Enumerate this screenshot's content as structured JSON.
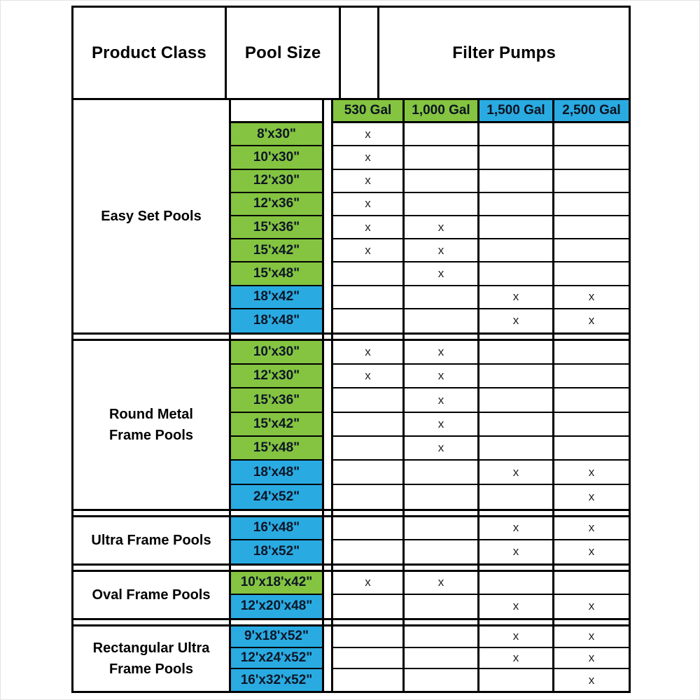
{
  "table": {
    "header": {
      "product_class": "Product Class",
      "pool_size": "Pool Size",
      "filter_pumps": "Filter Pumps"
    },
    "pump_columns": [
      {
        "label": "530 Gal",
        "color": "green"
      },
      {
        "label": "1,000 Gal",
        "color": "green"
      },
      {
        "label": "1,500 Gal",
        "color": "blue"
      },
      {
        "label": "2,500 Gal",
        "color": "blue"
      }
    ],
    "mark": "x",
    "colors": {
      "green": "#84c441",
      "blue": "#29abe2"
    },
    "sections": [
      {
        "product_class": "Easy Set Pools",
        "lines": [
          "Easy Set Pools"
        ],
        "pump_header": true,
        "rows": [
          {
            "size": "8'x30\"",
            "color": "green",
            "pumps": [
              1,
              0,
              0,
              0
            ]
          },
          {
            "size": "10'x30\"",
            "color": "green",
            "pumps": [
              1,
              0,
              0,
              0
            ]
          },
          {
            "size": "12'x30\"",
            "color": "green",
            "pumps": [
              1,
              0,
              0,
              0
            ]
          },
          {
            "size": "12'x36\"",
            "color": "green",
            "pumps": [
              1,
              0,
              0,
              0
            ]
          },
          {
            "size": "15'x36\"",
            "color": "green",
            "pumps": [
              1,
              1,
              0,
              0
            ]
          },
          {
            "size": "15'x42\"",
            "color": "green",
            "pumps": [
              1,
              1,
              0,
              0
            ]
          },
          {
            "size": "15'x48\"",
            "color": "green",
            "pumps": [
              0,
              1,
              0,
              0
            ]
          },
          {
            "size": "18'x42\"",
            "color": "blue",
            "pumps": [
              0,
              0,
              1,
              1
            ]
          },
          {
            "size": "18'x48\"",
            "color": "blue",
            "pumps": [
              0,
              0,
              1,
              1
            ]
          }
        ]
      },
      {
        "product_class": "Round Metal Frame Pools",
        "lines": [
          "Round Metal",
          "Frame Pools"
        ],
        "pump_header": false,
        "rows": [
          {
            "size": "10'x30\"",
            "color": "green",
            "pumps": [
              1,
              1,
              0,
              0
            ]
          },
          {
            "size": "12'x30\"",
            "color": "green",
            "pumps": [
              1,
              1,
              0,
              0
            ]
          },
          {
            "size": "15'x36\"",
            "color": "green",
            "pumps": [
              0,
              1,
              0,
              0
            ]
          },
          {
            "size": "15'x42\"",
            "color": "green",
            "pumps": [
              0,
              1,
              0,
              0
            ]
          },
          {
            "size": "15'x48\"",
            "color": "green",
            "pumps": [
              0,
              1,
              0,
              0
            ]
          },
          {
            "size": "18'x48\"",
            "color": "blue",
            "pumps": [
              0,
              0,
              1,
              1
            ]
          },
          {
            "size": "24'x52\"",
            "color": "blue",
            "pumps": [
              0,
              0,
              0,
              1
            ]
          }
        ]
      },
      {
        "product_class": "Ultra Frame Pools",
        "lines": [
          "Ultra Frame Pools"
        ],
        "pump_header": false,
        "rows": [
          {
            "size": "16'x48\"",
            "color": "blue",
            "pumps": [
              0,
              0,
              1,
              1
            ]
          },
          {
            "size": "18'x52\"",
            "color": "blue",
            "pumps": [
              0,
              0,
              1,
              1
            ]
          }
        ]
      },
      {
        "product_class": "Oval Frame Pools",
        "lines": [
          "Oval Frame Pools"
        ],
        "pump_header": false,
        "rows": [
          {
            "size": "10'x18'x42\"",
            "color": "green",
            "pumps": [
              1,
              1,
              0,
              0
            ]
          },
          {
            "size": "12'x20'x48\"",
            "color": "blue",
            "pumps": [
              0,
              0,
              1,
              1
            ]
          }
        ]
      },
      {
        "product_class": "Rectangular Ultra Frame Pools",
        "lines": [
          "Rectangular Ultra",
          "Frame Pools"
        ],
        "pump_header": false,
        "rows": [
          {
            "size": "9'x18'x52\"",
            "color": "blue",
            "pumps": [
              0,
              0,
              1,
              1
            ]
          },
          {
            "size": "12'x24'x52\"",
            "color": "blue",
            "pumps": [
              0,
              0,
              1,
              1
            ]
          },
          {
            "size": "16'x32'x52\"",
            "color": "blue",
            "pumps": [
              0,
              0,
              0,
              1
            ]
          }
        ]
      }
    ]
  },
  "chart_data": {
    "type": "table",
    "title": "Filter Pumps",
    "columns": [
      "Product Class",
      "Pool Size",
      "530 Gal",
      "1,000 Gal",
      "1,500 Gal",
      "2,500 Gal"
    ],
    "rows": [
      [
        "Easy Set Pools",
        "8'x30\"",
        "x",
        "",
        "",
        ""
      ],
      [
        "Easy Set Pools",
        "10'x30\"",
        "x",
        "",
        "",
        ""
      ],
      [
        "Easy Set Pools",
        "12'x30\"",
        "x",
        "",
        "",
        ""
      ],
      [
        "Easy Set Pools",
        "12'x36\"",
        "x",
        "",
        "",
        ""
      ],
      [
        "Easy Set Pools",
        "15'x36\"",
        "x",
        "x",
        "",
        ""
      ],
      [
        "Easy Set Pools",
        "15'x42\"",
        "x",
        "x",
        "",
        ""
      ],
      [
        "Easy Set Pools",
        "15'x48\"",
        "",
        "x",
        "",
        ""
      ],
      [
        "Easy Set Pools",
        "18'x42\"",
        "",
        "",
        "x",
        "x"
      ],
      [
        "Easy Set Pools",
        "18'x48\"",
        "",
        "",
        "x",
        "x"
      ],
      [
        "Round Metal Frame Pools",
        "10'x30\"",
        "x",
        "x",
        "",
        ""
      ],
      [
        "Round Metal Frame Pools",
        "12'x30\"",
        "x",
        "x",
        "",
        ""
      ],
      [
        "Round Metal Frame Pools",
        "15'x36\"",
        "",
        "x",
        "",
        ""
      ],
      [
        "Round Metal Frame Pools",
        "15'x42\"",
        "",
        "x",
        "",
        ""
      ],
      [
        "Round Metal Frame Pools",
        "15'x48\"",
        "",
        "x",
        "",
        ""
      ],
      [
        "Round Metal Frame Pools",
        "18'x48\"",
        "",
        "",
        "x",
        "x"
      ],
      [
        "Round Metal Frame Pools",
        "24'x52\"",
        "",
        "",
        "",
        "x"
      ],
      [
        "Ultra Frame Pools",
        "16'x48\"",
        "",
        "",
        "x",
        "x"
      ],
      [
        "Ultra Frame Pools",
        "18'x52\"",
        "",
        "",
        "x",
        "x"
      ],
      [
        "Oval Frame Pools",
        "10'x18'x42\"",
        "x",
        "x",
        "",
        ""
      ],
      [
        "Oval Frame Pools",
        "12'x20'x48\"",
        "",
        "",
        "x",
        "x"
      ],
      [
        "Rectangular Ultra Frame Pools",
        "9'x18'x52\"",
        "",
        "",
        "x",
        "x"
      ],
      [
        "Rectangular Ultra Frame Pools",
        "12'x24'x52\"",
        "",
        "",
        "x",
        "x"
      ],
      [
        "Rectangular Ultra Frame Pools",
        "16'x32'x52\"",
        "",
        "",
        "",
        "x"
      ]
    ]
  }
}
